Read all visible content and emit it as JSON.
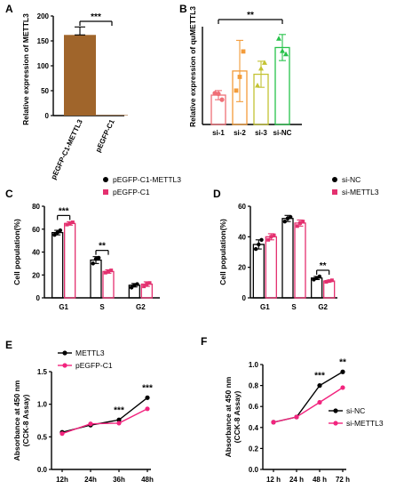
{
  "chart_data": [
    {
      "panel": "A",
      "type": "bar",
      "ylabel": "Relative expression of METTL3",
      "categories": [
        "pEGFP-C1-METTL3",
        "pEGFP-C1"
      ],
      "values": [
        162,
        1
      ],
      "errors": [
        16,
        0
      ],
      "colors": [
        "#a0652b",
        "#a0652b"
      ],
      "ylim": [
        0,
        200
      ],
      "yticks": [
        0,
        50,
        100,
        150,
        200
      ],
      "significance": [
        {
          "from": 0,
          "to": 1,
          "label": "***"
        }
      ]
    },
    {
      "panel": "B",
      "type": "bar",
      "ylabel": "Relative expression of quMETTL3",
      "categories": [
        "si-1",
        "si-2",
        "si-3",
        "si-NC"
      ],
      "values": [
        0.45,
        0.82,
        0.77,
        1.18
      ],
      "errors": [
        0.07,
        0.47,
        0.2,
        0.2
      ],
      "points": [
        [
          0.48,
          0.47,
          0.38
        ],
        [
          0.52,
          0.73,
          1.12
        ],
        [
          0.6,
          0.86,
          0.95
        ],
        [
          1.32,
          1.13,
          1.08
        ]
      ],
      "colors": [
        "#ef6f77",
        "#f39c3a",
        "#c4c333",
        "#27c24a"
      ],
      "ylim": [
        0,
        1.5
      ],
      "significance": [
        {
          "from": 0,
          "to": 3,
          "label": "**"
        }
      ]
    },
    {
      "panel": "C",
      "type": "bar",
      "ylabel": "Cell population(%)",
      "categories": [
        "G1",
        "S",
        "G2"
      ],
      "series": [
        {
          "name": "pEGFP-C1-METTL3",
          "color": "#000000",
          "values": [
            57,
            33,
            11
          ],
          "errors": [
            2,
            3,
            1.5
          ],
          "points": [
            [
              55,
              57,
              59
            ],
            [
              30,
              34,
              35
            ],
            [
              9,
              11,
              12
            ]
          ]
        },
        {
          "name": "pEGFP-C1",
          "color": "#e4306f",
          "values": [
            65,
            23,
            12
          ],
          "errors": [
            1.5,
            1.5,
            2
          ],
          "points": [
            [
              64,
              65,
              66
            ],
            [
              22,
              23,
              24
            ],
            [
              10,
              12,
              13
            ]
          ]
        }
      ],
      "ylim": [
        0,
        80
      ],
      "yticks": [
        0,
        20,
        40,
        60,
        80
      ],
      "significance": [
        {
          "group": 0,
          "label": "***"
        },
        {
          "group": 1,
          "label": "**"
        }
      ]
    },
    {
      "panel": "D",
      "type": "bar",
      "ylabel": "Cell population(%)",
      "categories": [
        "G1",
        "S",
        "G2"
      ],
      "series": [
        {
          "name": "si-NC",
          "color": "#000000",
          "values": [
            35,
            52,
            13
          ],
          "errors": [
            3,
            2,
            1
          ],
          "points": [
            [
              32,
              35,
              38
            ],
            [
              50,
              52,
              53
            ],
            [
              12,
              13,
              14
            ]
          ]
        },
        {
          "name": "si-METTL3",
          "color": "#e4306f",
          "values": [
            40,
            49,
            11
          ],
          "errors": [
            2,
            2,
            0.5
          ],
          "points": [
            [
              38,
              40,
              41
            ],
            [
              47,
              49,
              50
            ],
            [
              10.5,
              11,
              11.5
            ]
          ]
        }
      ],
      "ylim": [
        0,
        60
      ],
      "yticks": [
        0,
        20,
        40,
        60
      ],
      "significance": [
        {
          "group": 2,
          "label": "**"
        }
      ]
    },
    {
      "panel": "E",
      "type": "line",
      "ylabel": "Absorbance at 450 nm",
      "ylabel2": "(CCK-8 Assay)",
      "x": [
        "12h",
        "24h",
        "36h",
        "48h"
      ],
      "series": [
        {
          "name": "METTL3",
          "color": "#000000",
          "values": [
            0.57,
            0.68,
            0.76,
            1.1
          ]
        },
        {
          "name": "pEGFP-C1",
          "color": "#f2247e",
          "values": [
            0.55,
            0.7,
            0.71,
            0.93
          ]
        }
      ],
      "ylim": [
        0.0,
        1.5
      ],
      "yticks": [
        0.0,
        0.5,
        1.0,
        1.5
      ],
      "legend": "top-left",
      "significance": [
        {
          "index": 2,
          "label": "***"
        },
        {
          "index": 3,
          "label": "***"
        }
      ]
    },
    {
      "panel": "F",
      "type": "line",
      "ylabel": "Absorbance at 450 nm",
      "ylabel2": "(CCK-8 Assay)",
      "x": [
        "12 h",
        "24 h",
        "48 h",
        "72 h"
      ],
      "series": [
        {
          "name": "si-NC",
          "color": "#000000",
          "values": [
            0.45,
            0.5,
            0.8,
            0.93
          ]
        },
        {
          "name": "si-METTL3",
          "color": "#f2247e",
          "values": [
            0.45,
            0.5,
            0.64,
            0.78
          ]
        }
      ],
      "ylim": [
        0.0,
        1.0
      ],
      "yticks": [
        0.0,
        0.2,
        0.4,
        0.6,
        0.8,
        1.0
      ],
      "legend": "right",
      "significance": [
        {
          "index": 2,
          "label": "***"
        },
        {
          "index": 3,
          "label": "**"
        }
      ]
    }
  ]
}
